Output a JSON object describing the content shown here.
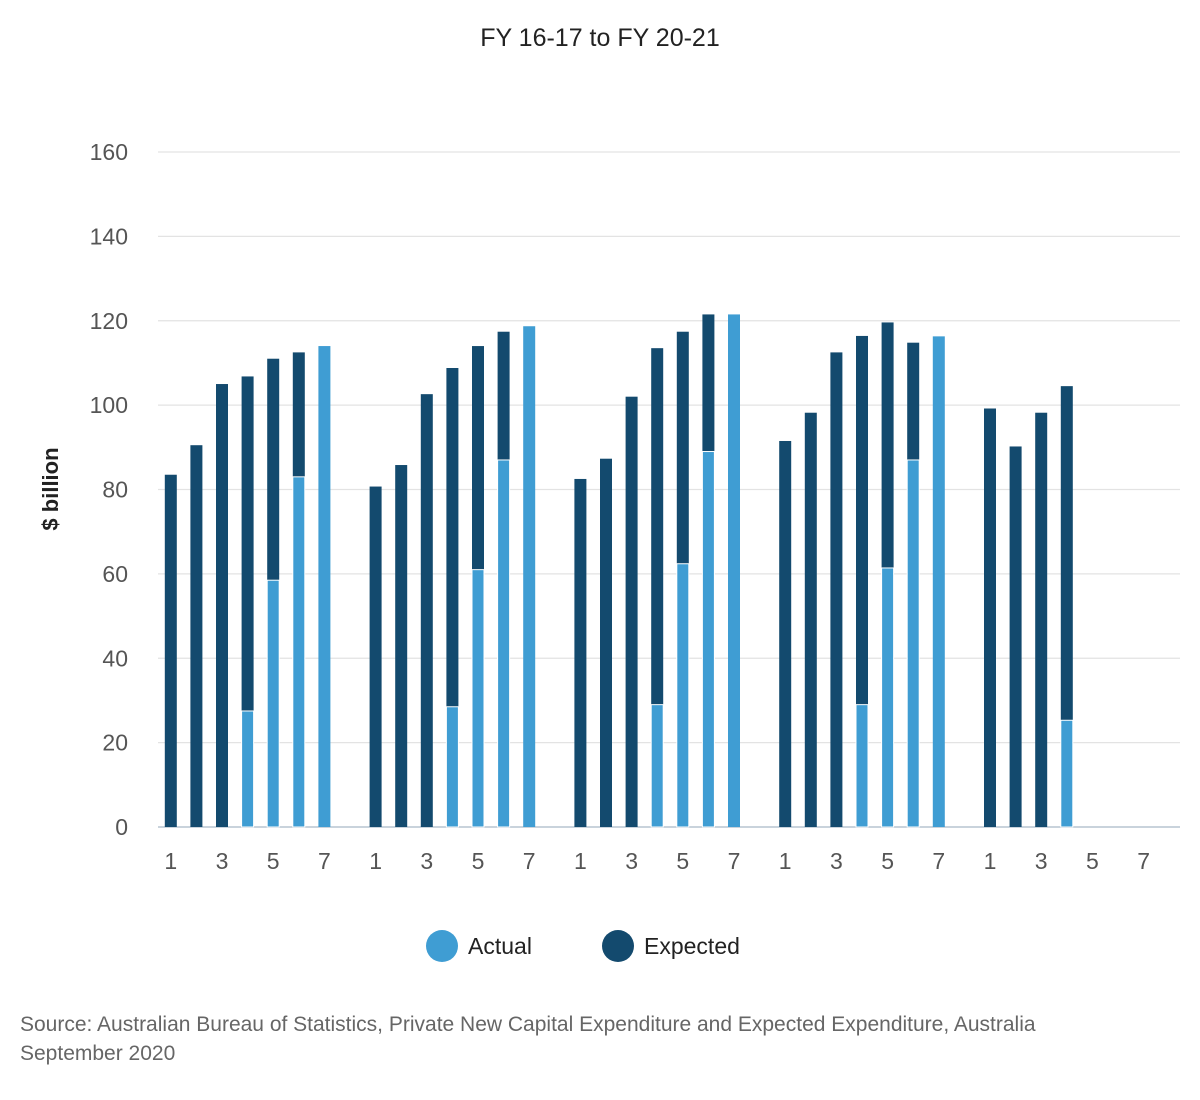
{
  "chart_data": {
    "type": "bar",
    "title": "FY 16-17 to FY 20-21",
    "xlabel": "",
    "ylabel": "$ billion",
    "ylim": [
      0,
      160
    ],
    "yticks": [
      0,
      20,
      40,
      60,
      80,
      100,
      120,
      140,
      160
    ],
    "grid": true,
    "legend_position": "bottom",
    "stacked": false,
    "overlay": "actual drawn in front of expected",
    "xtick_labels": [
      "1",
      "3",
      "5",
      "7"
    ],
    "groups": [
      {
        "expected": [
          83.5,
          90.5,
          105,
          106.8,
          111,
          112.5,
          null
        ],
        "actual": [
          null,
          null,
          null,
          27.5,
          58.5,
          83,
          114
        ]
      },
      {
        "expected": [
          80.7,
          85.8,
          102.6,
          108.8,
          114,
          117.4,
          null
        ],
        "actual": [
          null,
          null,
          null,
          28.5,
          61,
          87,
          118.7
        ]
      },
      {
        "expected": [
          82.5,
          87.3,
          102,
          113.5,
          117.4,
          121.5,
          null
        ],
        "actual": [
          null,
          null,
          null,
          29,
          62.4,
          89,
          121.5
        ]
      },
      {
        "expected": [
          91.5,
          98.2,
          112.5,
          116.4,
          119.6,
          114.8,
          null
        ],
        "actual": [
          null,
          null,
          null,
          29,
          61.4,
          87,
          116.3
        ]
      },
      {
        "expected": [
          99.2,
          90.2,
          98.2,
          104.5,
          null,
          null,
          null
        ],
        "actual": [
          null,
          null,
          null,
          25.3,
          null,
          null,
          null
        ]
      }
    ],
    "series": [
      {
        "name": "Actual",
        "color": "#3f9dd3"
      },
      {
        "name": "Expected",
        "color": "#134a6e"
      }
    ]
  },
  "legend": {
    "actual_label": "Actual",
    "expected_label": "Expected"
  },
  "source": {
    "line1": "Source: Australian Bureau of Statistics, Private New Capital Expenditure and Expected Expenditure, Australia",
    "line2": "September 2020"
  }
}
